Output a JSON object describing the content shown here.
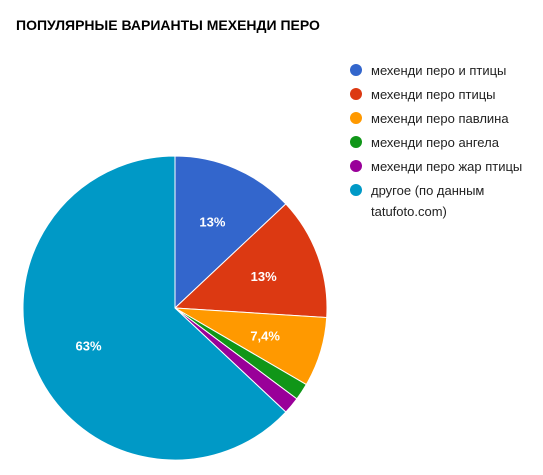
{
  "chart_data": {
    "type": "pie",
    "title": "ПОПУЛЯРНЫЕ ВАРИАНТЫ МЕХЕНДИ ПЕРО",
    "legend_position": "right",
    "slices": [
      {
        "label": "мехенди перо и птицы",
        "value": 13,
        "display": "13%",
        "color": "#3366cc"
      },
      {
        "label": "мехенди перо птицы",
        "value": 13,
        "display": "13%",
        "color": "#dc3912"
      },
      {
        "label": "мехенди перо павлина",
        "value": 7.4,
        "display": "7,4%",
        "color": "#ff9900"
      },
      {
        "label": "мехенди перо ангела",
        "value": 1.8,
        "display": "",
        "color": "#109618"
      },
      {
        "label": "мехенди перо жар птицы",
        "value": 1.8,
        "display": "",
        "color": "#990099"
      },
      {
        "label": "другое (по данным tatufoto.com)",
        "value": 63,
        "display": "63%",
        "color": "#0099c6"
      }
    ]
  }
}
